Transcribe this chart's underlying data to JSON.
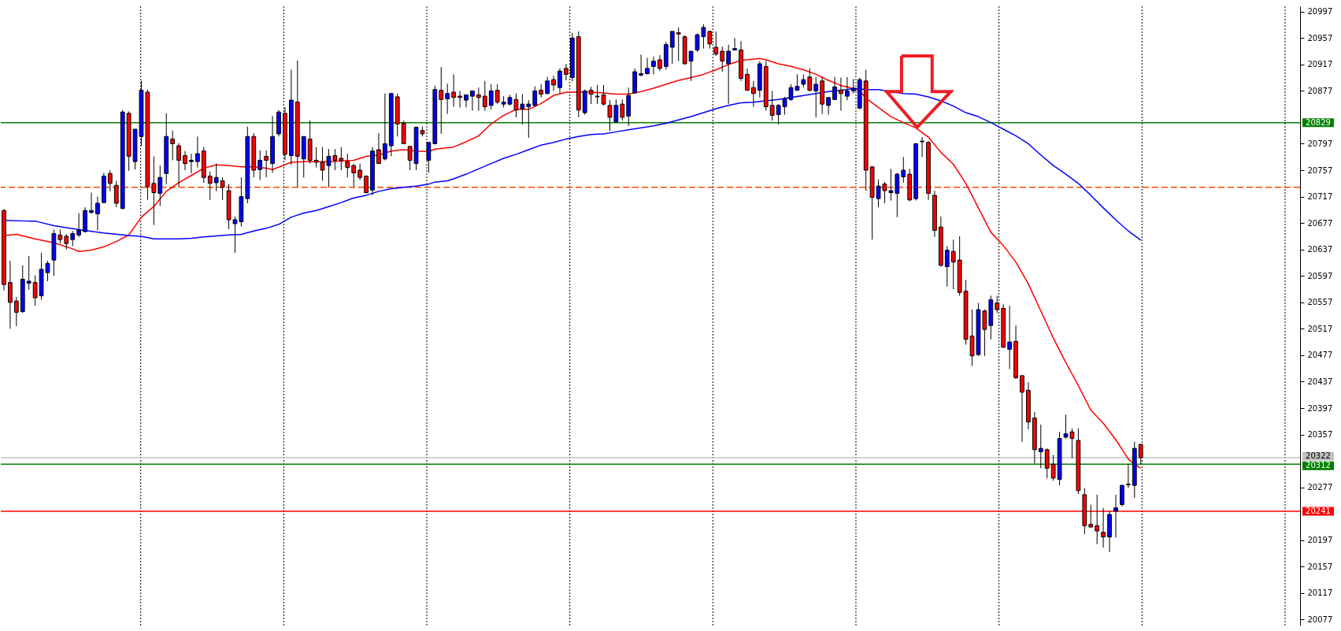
{
  "chart_data": {
    "type": "candlestick",
    "categories": [
      null,
      null,
      null,
      null,
      null,
      null,
      null,
      null,
      null,
      null,
      null,
      null,
      null,
      null,
      null,
      null,
      null,
      null,
      null,
      null,
      null,
      null,
      null,
      null,
      null,
      null,
      null,
      null,
      null,
      null,
      null,
      null,
      null,
      null,
      null,
      null,
      null,
      null,
      null,
      null,
      null,
      null,
      null,
      null,
      null,
      null,
      null,
      null,
      null,
      null,
      null,
      null,
      null,
      null,
      null,
      null,
      null,
      null,
      null,
      null,
      null,
      null,
      null,
      null,
      null,
      null,
      null,
      null,
      null,
      null,
      null,
      null,
      null,
      null,
      null,
      null,
      null,
      null,
      null,
      null,
      null,
      null,
      null,
      null,
      null,
      null,
      null,
      null,
      null,
      null,
      null,
      null,
      null,
      null,
      null,
      null,
      null,
      null,
      null,
      null,
      null,
      null,
      null,
      null,
      null,
      null,
      null,
      null,
      null,
      null,
      null,
      null,
      null,
      null,
      null,
      null,
      null,
      null,
      null,
      null,
      null,
      null,
      null,
      null,
      null,
      null,
      null,
      null,
      null,
      null,
      null,
      null,
      null,
      null,
      null,
      null,
      null,
      null,
      null,
      null,
      null,
      null,
      null,
      null,
      null,
      null,
      null,
      null,
      null,
      null,
      null,
      null,
      null,
      null,
      null,
      null,
      null,
      null,
      null,
      null,
      null,
      null,
      null,
      null,
      null,
      null,
      null,
      null,
      null,
      null,
      null,
      null,
      null,
      null,
      null,
      null,
      null,
      null,
      null,
      null,
      null,
      null,
      null,
      null,
      null,
      null,
      null,
      null,
      null,
      null,
      null,
      null,
      null,
      null,
      null,
      null,
      null,
      null,
      null,
      null,
      null,
      null,
      null,
      null,
      null,
      null,
      null,
      null
    ],
    "ohlc": [
      [
        20696,
        20698,
        20575,
        20584
      ],
      [
        20587,
        20620,
        20517,
        20557
      ],
      [
        20559,
        20565,
        20521,
        20542
      ],
      [
        20543,
        20613,
        20541,
        20592
      ],
      [
        20586,
        20627,
        20576,
        20589
      ],
      [
        20587,
        20598,
        20552,
        20564
      ],
      [
        20567,
        20632,
        20561,
        20607
      ],
      [
        20602,
        20620,
        20589,
        20616
      ],
      [
        20621,
        20667,
        20597,
        20661
      ],
      [
        20659,
        20667,
        20646,
        20652
      ],
      [
        20657,
        20660,
        20637,
        20646
      ],
      [
        20652,
        20665,
        20642,
        20661
      ],
      [
        20659,
        20692,
        20656,
        20666
      ],
      [
        20664,
        20701,
        20663,
        20696
      ],
      [
        20693,
        20723,
        20691,
        20696
      ],
      [
        20691,
        20717,
        20666,
        20707
      ],
      [
        20708,
        20753,
        20707,
        20748
      ],
      [
        20752,
        20757,
        20725,
        20737
      ],
      [
        20734,
        20741,
        20701,
        20707
      ],
      [
        20699,
        20848,
        20698,
        20845
      ],
      [
        20843,
        20846,
        20756,
        20778
      ],
      [
        20770,
        20819,
        20758,
        20819
      ],
      [
        20808,
        20892,
        20794,
        20878
      ],
      [
        20875,
        20879,
        20712,
        20732
      ],
      [
        20737,
        20778,
        20674,
        20723
      ],
      [
        20722,
        20764,
        20703,
        20746
      ],
      [
        20752,
        20843,
        20736,
        20808
      ],
      [
        20804,
        20817,
        20772,
        20797
      ],
      [
        20794,
        20798,
        20732,
        20772
      ],
      [
        20779,
        20786,
        20757,
        20767
      ],
      [
        20770,
        20782,
        20752,
        20772
      ],
      [
        20770,
        20808,
        20761,
        20782
      ],
      [
        20786,
        20792,
        20738,
        20746
      ],
      [
        20748,
        20755,
        20712,
        20737
      ],
      [
        20738,
        20767,
        20725,
        20746
      ],
      [
        20741,
        20746,
        20712,
        20731
      ],
      [
        20726,
        20736,
        20668,
        20682
      ],
      [
        20676,
        20687,
        20632,
        20682
      ],
      [
        20679,
        20746,
        20672,
        20717
      ],
      [
        20714,
        20823,
        20707,
        20808
      ],
      [
        20808,
        20813,
        20746,
        20757
      ],
      [
        20758,
        20787,
        20742,
        20772
      ],
      [
        20778,
        20787,
        20746,
        20772
      ],
      [
        20767,
        20839,
        20753,
        20808
      ],
      [
        20812,
        20848,
        20808,
        20845
      ],
      [
        20843,
        20852,
        20772,
        20781
      ],
      [
        20779,
        20909,
        20765,
        20863
      ],
      [
        20860,
        20923,
        20732,
        20778
      ],
      [
        20774,
        20808,
        20746,
        20808
      ],
      [
        20804,
        20832,
        20767,
        20772
      ],
      [
        20772,
        20792,
        20761,
        20769
      ],
      [
        20769,
        20792,
        20741,
        20757
      ],
      [
        20764,
        20789,
        20731,
        20778
      ],
      [
        20779,
        20789,
        20757,
        20772
      ],
      [
        20775,
        20792,
        20757,
        20772
      ],
      [
        20770,
        20782,
        20746,
        20761
      ],
      [
        20764,
        20767,
        20732,
        20753
      ],
      [
        20757,
        20767,
        20742,
        20746
      ],
      [
        20748,
        20749,
        20722,
        20723
      ],
      [
        20727,
        20792,
        20719,
        20786
      ],
      [
        20788,
        20813,
        20767,
        20767
      ],
      [
        20774,
        20873,
        20772,
        20797
      ],
      [
        20794,
        20873,
        20778,
        20873
      ],
      [
        20868,
        20873,
        20808,
        20827
      ],
      [
        20828,
        20832,
        20797,
        20797
      ],
      [
        20793,
        20793,
        20757,
        20772
      ],
      [
        20767,
        20823,
        20757,
        20822
      ],
      [
        20817,
        20823,
        20808,
        20812
      ],
      [
        20772,
        20799,
        20753,
        20799
      ],
      [
        20797,
        20885,
        20796,
        20879
      ],
      [
        20878,
        20913,
        20812,
        20864
      ],
      [
        20865,
        20888,
        20842,
        20873
      ],
      [
        20875,
        20902,
        20853,
        20867
      ],
      [
        20869,
        20877,
        20852,
        20867
      ],
      [
        20863,
        20871,
        20852,
        20871
      ],
      [
        20869,
        20877,
        20847,
        20877
      ],
      [
        20871,
        20882,
        20847,
        20867
      ],
      [
        20869,
        20892,
        20847,
        20853
      ],
      [
        20855,
        20887,
        20849,
        20877
      ],
      [
        20878,
        20887,
        20857,
        20860
      ],
      [
        20857,
        20869,
        20852,
        20860
      ],
      [
        20857,
        20871,
        20855,
        20867
      ],
      [
        20864,
        20873,
        20837,
        20848
      ],
      [
        20850,
        20872,
        20826,
        20857
      ],
      [
        20853,
        20863,
        20806,
        20857
      ],
      [
        20855,
        20884,
        20853,
        20877
      ],
      [
        20878,
        20887,
        20867,
        20872
      ],
      [
        20873,
        20898,
        20872,
        20892
      ],
      [
        20894,
        20900,
        20877,
        20886
      ],
      [
        20882,
        20911,
        20873,
        20907
      ],
      [
        20911,
        20918,
        20893,
        20902
      ],
      [
        20897,
        20965,
        20891,
        20957
      ],
      [
        20959,
        20967,
        20837,
        20848
      ],
      [
        20844,
        20879,
        20841,
        20877
      ],
      [
        20878,
        20883,
        20857,
        20872
      ],
      [
        20869,
        20886,
        20857,
        20868
      ],
      [
        20871,
        20886,
        20855,
        20857
      ],
      [
        20855,
        20863,
        20816,
        20837
      ],
      [
        20830,
        20864,
        20829,
        20855
      ],
      [
        20857,
        20864,
        20832,
        20837
      ],
      [
        20839,
        20882,
        20824,
        20870
      ],
      [
        20874,
        20911,
        20873,
        20906
      ],
      [
        20901,
        20932,
        20899,
        20903
      ],
      [
        20903,
        20927,
        20902,
        20911
      ],
      [
        20914,
        20929,
        20902,
        20922
      ],
      [
        20924,
        20931,
        20907,
        20911
      ],
      [
        20914,
        20951,
        20909,
        20947
      ],
      [
        20943,
        20967,
        20918,
        20967
      ],
      [
        20965,
        20973,
        20922,
        20963
      ],
      [
        20959,
        20961,
        20917,
        20918
      ],
      [
        20922,
        20937,
        20892,
        20937
      ],
      [
        20939,
        20964,
        20936,
        20962
      ],
      [
        20959,
        20978,
        20941,
        20973
      ],
      [
        20967,
        20968,
        20941,
        20948
      ],
      [
        20943,
        20967,
        20930,
        20933
      ],
      [
        20937,
        20944,
        20906,
        20922
      ],
      [
        20918,
        20947,
        20857,
        20937
      ],
      [
        20939,
        20957,
        20938,
        20941
      ],
      [
        20939,
        20952,
        20892,
        20896
      ],
      [
        20902,
        20911,
        20877,
        20878
      ],
      [
        20882,
        20892,
        20853,
        20873
      ],
      [
        20878,
        20922,
        20867,
        20918
      ],
      [
        20914,
        20922,
        20847,
        20853
      ],
      [
        20855,
        20877,
        20832,
        20840
      ],
      [
        20841,
        20857,
        20826,
        20855
      ],
      [
        20853,
        20868,
        20841,
        20865
      ],
      [
        20864,
        20887,
        20862,
        20882
      ],
      [
        20878,
        20902,
        20877,
        20884
      ],
      [
        20887,
        20902,
        20882,
        20894
      ],
      [
        20898,
        20911,
        20876,
        20878
      ],
      [
        20877,
        20898,
        20837,
        20887
      ],
      [
        20892,
        20898,
        20842,
        20857
      ],
      [
        20855,
        20867,
        20841,
        20867
      ],
      [
        20864,
        20898,
        20863,
        20883
      ],
      [
        20878,
        20897,
        20847,
        20873
      ],
      [
        20869,
        20898,
        20863,
        20877
      ],
      [
        20877,
        20895,
        20873,
        20881
      ],
      [
        20851,
        20897,
        20849,
        20894
      ],
      [
        20892,
        20909,
        20726,
        20757
      ],
      [
        20762,
        20763,
        20652,
        20716
      ],
      [
        20714,
        20743,
        20701,
        20733
      ],
      [
        20736,
        20739,
        20707,
        20726
      ],
      [
        20723,
        20759,
        20711,
        20726
      ],
      [
        20722,
        20753,
        20686,
        20751
      ],
      [
        20747,
        20777,
        20738,
        20757
      ],
      [
        20751,
        20759,
        20710,
        20712
      ],
      [
        20714,
        20798,
        20711,
        20797
      ],
      [
        20800,
        20807,
        20777,
        20801
      ],
      [
        20799,
        20801,
        20712,
        20722
      ],
      [
        20719,
        20726,
        20656,
        20666
      ],
      [
        20671,
        20687,
        20611,
        20613
      ],
      [
        20611,
        20642,
        20581,
        20636
      ],
      [
        20634,
        20652,
        20577,
        20618
      ],
      [
        20621,
        20657,
        20567,
        20572
      ],
      [
        20574,
        20591,
        20493,
        20501
      ],
      [
        20506,
        20546,
        20461,
        20476
      ],
      [
        20478,
        20556,
        20476,
        20546
      ],
      [
        20544,
        20546,
        20476,
        20516
      ],
      [
        20522,
        20567,
        20501,
        20561
      ],
      [
        20556,
        20567,
        20541,
        20546
      ],
      [
        20548,
        20554,
        20488,
        20489
      ],
      [
        20486,
        20552,
        20456,
        20497
      ],
      [
        20498,
        20522,
        20441,
        20443
      ],
      [
        20446,
        20447,
        20346,
        20421
      ],
      [
        20424,
        20436,
        20365,
        20376
      ],
      [
        20382,
        20391,
        20313,
        20334
      ],
      [
        20331,
        20372,
        20306,
        20336
      ],
      [
        20334,
        20336,
        20291,
        20306
      ],
      [
        20312,
        20326,
        20287,
        20291
      ],
      [
        20289,
        20361,
        20280,
        20351
      ],
      [
        20353,
        20387,
        20351,
        20358
      ],
      [
        20361,
        20366,
        20321,
        20351
      ],
      [
        20348,
        20366,
        20267,
        20272
      ],
      [
        20266,
        20276,
        20206,
        20219
      ],
      [
        20221,
        20251,
        20216,
        20217
      ],
      [
        20219,
        20266,
        20191,
        20211
      ],
      [
        20209,
        20246,
        20186,
        20202
      ],
      [
        20202,
        20241,
        20179,
        20236
      ],
      [
        20241,
        20266,
        20201,
        20246
      ],
      [
        20251,
        20281,
        20248,
        20280
      ],
      [
        20281,
        20312,
        20276,
        20282
      ],
      [
        20280,
        20346,
        20261,
        20336
      ],
      [
        20342,
        20343,
        20312,
        20322
      ],
      null,
      null,
      null,
      null,
      null,
      null,
      null,
      null,
      null,
      null,
      null,
      null,
      null,
      null,
      null,
      null,
      null,
      null,
      null,
      null,
      null,
      null,
      null,
      null,
      null
    ],
    "colors": [
      "#ff0000",
      "#ff0000",
      "#ff0000",
      "#0000ff",
      "#0000ff",
      "#ff0000",
      "#0000ff",
      "#0000ff",
      "#0000ff",
      "#ff0000",
      "#ff0000",
      "#0000ff",
      "#0000ff",
      "#0000ff",
      "#0000ff",
      "#0000ff",
      "#0000ff",
      "#ff0000",
      "#ff0000",
      "#0000ff",
      "#ff0000",
      "#0000ff",
      "#0000ff",
      "#ff0000",
      "#ff0000",
      "#0000ff",
      "#0000ff",
      "#ff0000",
      "#ff0000",
      "#ff0000",
      "#0000ff",
      "#0000ff",
      "#ff0000",
      "#ff0000",
      "#0000ff",
      "#ff0000",
      "#ff0000",
      "#0000ff",
      "#0000ff",
      "#0000ff",
      "#ff0000",
      "#0000ff",
      "#ff0000",
      "#0000ff",
      "#0000ff",
      "#ff0000",
      "#0000ff",
      "#ff0000",
      "#0000ff",
      "#ff0000",
      "#ff0000",
      "#ff0000",
      "#0000ff",
      "#ff0000",
      "#ff0000",
      "#ff0000",
      "#ff0000",
      "#ff0000",
      "#ff0000",
      "#0000ff",
      "#ff0000",
      "#0000ff",
      "#0000ff",
      "#ff0000",
      "#ff0000",
      "#ff0000",
      "#0000ff",
      "#ff0000",
      "#0000ff",
      "#0000ff",
      "#ff0000",
      "#0000ff",
      "#ff0000",
      "#ff0000",
      "#0000ff",
      "#0000ff",
      "#ff0000",
      "#ff0000",
      "#0000ff",
      "#ff0000",
      "#0000ff",
      "#0000ff",
      "#ff0000",
      "#0000ff",
      "#0000ff",
      "#0000ff",
      "#ff0000",
      "#0000ff",
      "#ff0000",
      "#0000ff",
      "#ff0000",
      "#0000ff",
      "#ff0000",
      "#0000ff",
      "#ff0000",
      "#ff0000",
      "#ff0000",
      "#ff0000",
      "#0000ff",
      "#ff0000",
      "#0000ff",
      "#0000ff",
      "#0000ff",
      "#0000ff",
      "#0000ff",
      "#ff0000",
      "#0000ff",
      "#0000ff",
      "#ff0000",
      "#ff0000",
      "#0000ff",
      "#0000ff",
      "#0000ff",
      "#ff0000",
      "#ff0000",
      "#ff0000",
      "#0000ff",
      "#0000ff",
      "#ff0000",
      "#ff0000",
      "#ff0000",
      "#0000ff",
      "#ff0000",
      "#ff0000",
      "#0000ff",
      "#0000ff",
      "#0000ff",
      "#0000ff",
      "#0000ff",
      "#ff0000",
      "#0000ff",
      "#ff0000",
      "#0000ff",
      "#0000ff",
      "#ff0000",
      "#0000ff",
      "#0000ff",
      "#0000ff",
      "#ff0000",
      "#ff0000",
      "#0000ff",
      "#ff0000",
      "#0000ff",
      "#0000ff",
      "#0000ff",
      "#ff0000",
      "#0000ff",
      "#0000ff",
      "#ff0000",
      "#ff0000",
      "#ff0000",
      "#0000ff",
      "#ff0000",
      "#ff0000",
      "#ff0000",
      "#ff0000",
      "#0000ff",
      "#ff0000",
      "#0000ff",
      "#ff0000",
      "#ff0000",
      "#0000ff",
      "#ff0000",
      "#ff0000",
      "#ff0000",
      "#ff0000",
      "#0000ff",
      "#ff0000",
      "#ff0000",
      "#0000ff",
      "#0000ff",
      "#ff0000",
      "#ff0000",
      "#ff0000",
      "#ff0000",
      "#ff0000",
      "#ff0000",
      "#0000ff",
      "#0000ff",
      "#0000ff",
      "#0000ff",
      "#0000ff",
      "#ff0000",
      null,
      null,
      null,
      null,
      null,
      null,
      null,
      null,
      null,
      null,
      null,
      null,
      null,
      null,
      null,
      null,
      null,
      null,
      null,
      null,
      null,
      null,
      null,
      null,
      null
    ],
    "series": [
      {
        "type": "line",
        "color": "#ff0000",
        "values": [
          20658,
          null,
          20660,
          null,
          null,
          20653,
          null,
          null,
          20647,
          null,
          null,
          20638,
          20634,
          null,
          20636,
          null,
          20641,
          null,
          20649,
          null,
          20659,
          null,
          20686,
          null,
          20702,
          null,
          20725,
          null,
          20738,
          null,
          20749,
          null,
          20760,
          null,
          20765,
          null,
          20764,
          null,
          20762,
          null,
          20762,
          null,
          20760,
          20758,
          null,
          null,
          20769,
          null,
          20770,
          null,
          null,
          null,
          20770,
          null,
          null,
          null,
          20772,
          null,
          20778,
          null,
          20780,
          null,
          20786,
          null,
          20788,
          null,
          20786,
          null,
          20785,
          20789,
          null,
          null,
          20792,
          null,
          20800,
          null,
          20809,
          null,
          20827,
          null,
          20840,
          null,
          20849,
          null,
          20849,
          null,
          20858,
          null,
          20870,
          null,
          20875,
          null,
          20875,
          null,
          20875,
          null,
          20874,
          null,
          20872,
          null,
          20872,
          null,
          20876,
          null,
          20881,
          null,
          20887,
          null,
          20893,
          null,
          20897,
          null,
          20902,
          null,
          20909,
          null,
          20917,
          null,
          20923,
          null,
          20925,
          20926,
          20924,
          null,
          20918,
          null,
          20914,
          null,
          20909,
          null,
          20902,
          null,
          20893,
          null,
          20885,
          20883,
          null,
          20877,
          20866,
          null,
          20852,
          null,
          20838,
          null,
          20829,
          null,
          20821,
          null,
          20807,
          null,
          20784,
          null,
          20766,
          null,
          20737,
          null,
          20700,
          null,
          20663,
          null,
          20643,
          null,
          20618,
          null,
          20585,
          null,
          20544,
          null,
          20503,
          null,
          20466,
          null,
          20431,
          null,
          20394,
          null,
          20374,
          null,
          20349,
          null,
          20320,
          20312,
          20306,
          null,
          null,
          null,
          null,
          null,
          null,
          null,
          null,
          null,
          null,
          null,
          null,
          null,
          null,
          null,
          null,
          null,
          null,
          null,
          null,
          null,
          null,
          null,
          null,
          null
        ]
      },
      {
        "type": "line",
        "color": "#0000ff",
        "values": [
          20681,
          null,
          null,
          null,
          20680,
          20680,
          null,
          null,
          20673,
          null,
          null,
          null,
          20667,
          null,
          null,
          null,
          20662,
          null,
          null,
          null,
          20658,
          null,
          20657,
          null,
          20653,
          null,
          null,
          null,
          20653,
          null,
          20654,
          null,
          20656,
          null,
          null,
          null,
          20659,
          null,
          20660,
          null,
          20665,
          null,
          20669,
          null,
          20675,
          null,
          20686,
          null,
          20692,
          null,
          20696,
          null,
          20702,
          null,
          20708,
          null,
          20715,
          null,
          20719,
          null,
          20725,
          null,
          20729,
          null,
          20731,
          null,
          20733,
          null,
          20736,
          20739,
          null,
          20741,
          20744,
          null,
          20751,
          null,
          20759,
          null,
          20767,
          null,
          20775,
          null,
          20781,
          null,
          20788,
          null,
          20795,
          null,
          20799,
          null,
          20804,
          null,
          20808,
          null,
          20811,
          null,
          20812,
          null,
          20815,
          null,
          20818,
          null,
          20821,
          null,
          20824,
          null,
          20828,
          null,
          20833,
          null,
          20838,
          null,
          20844,
          null,
          20850,
          null,
          20855,
          null,
          20859,
          null,
          20860,
          null,
          20862,
          null,
          20864,
          null,
          20867,
          null,
          20870,
          null,
          20873,
          null,
          20876,
          null,
          20878,
          20879,
          20881,
          null,
          20879,
          null,
          20879,
          null,
          null,
          null,
          20873,
          null,
          20872,
          null,
          20868,
          null,
          20862,
          null,
          20854,
          null,
          20844,
          null,
          20838,
          null,
          20829,
          null,
          20819,
          null,
          20809,
          null,
          20797,
          null,
          20780,
          null,
          20764,
          null,
          20751,
          null,
          20737,
          null,
          20719,
          null,
          20700,
          null,
          20682,
          null,
          20665,
          null,
          20651,
          null,
          null,
          null,
          null,
          null,
          null,
          null,
          null,
          null,
          null,
          null,
          null,
          null,
          null,
          null,
          null,
          null,
          null,
          null,
          null,
          null,
          null,
          null,
          null,
          null
        ]
      }
    ],
    "ylim": [
      20068,
      21005
    ],
    "yticks": [
      20077,
      20117,
      20157,
      20197,
      20277,
      20357,
      20397,
      20437,
      20477,
      20517,
      20557,
      20597,
      20637,
      20677,
      20717,
      20757,
      20797,
      20877,
      20917,
      20957,
      20997
    ],
    "ref_lines": [
      {
        "axis": "y",
        "value": 20829,
        "label": "20829",
        "color": "#008000"
      },
      {
        "axis": "y",
        "value": 20731,
        "color": "#ff4500",
        "line_style": "dashed"
      },
      {
        "axis": "y",
        "value": 20322,
        "label": "20322",
        "color": "#c0c0c0"
      },
      {
        "axis": "y",
        "value": 20312,
        "label": "20312",
        "color": "#008000"
      },
      {
        "axis": "y",
        "value": 20241,
        "label": "20241",
        "color": "#ff0000"
      }
    ],
    "grid": "x",
    "tick_labels": "y"
  }
}
